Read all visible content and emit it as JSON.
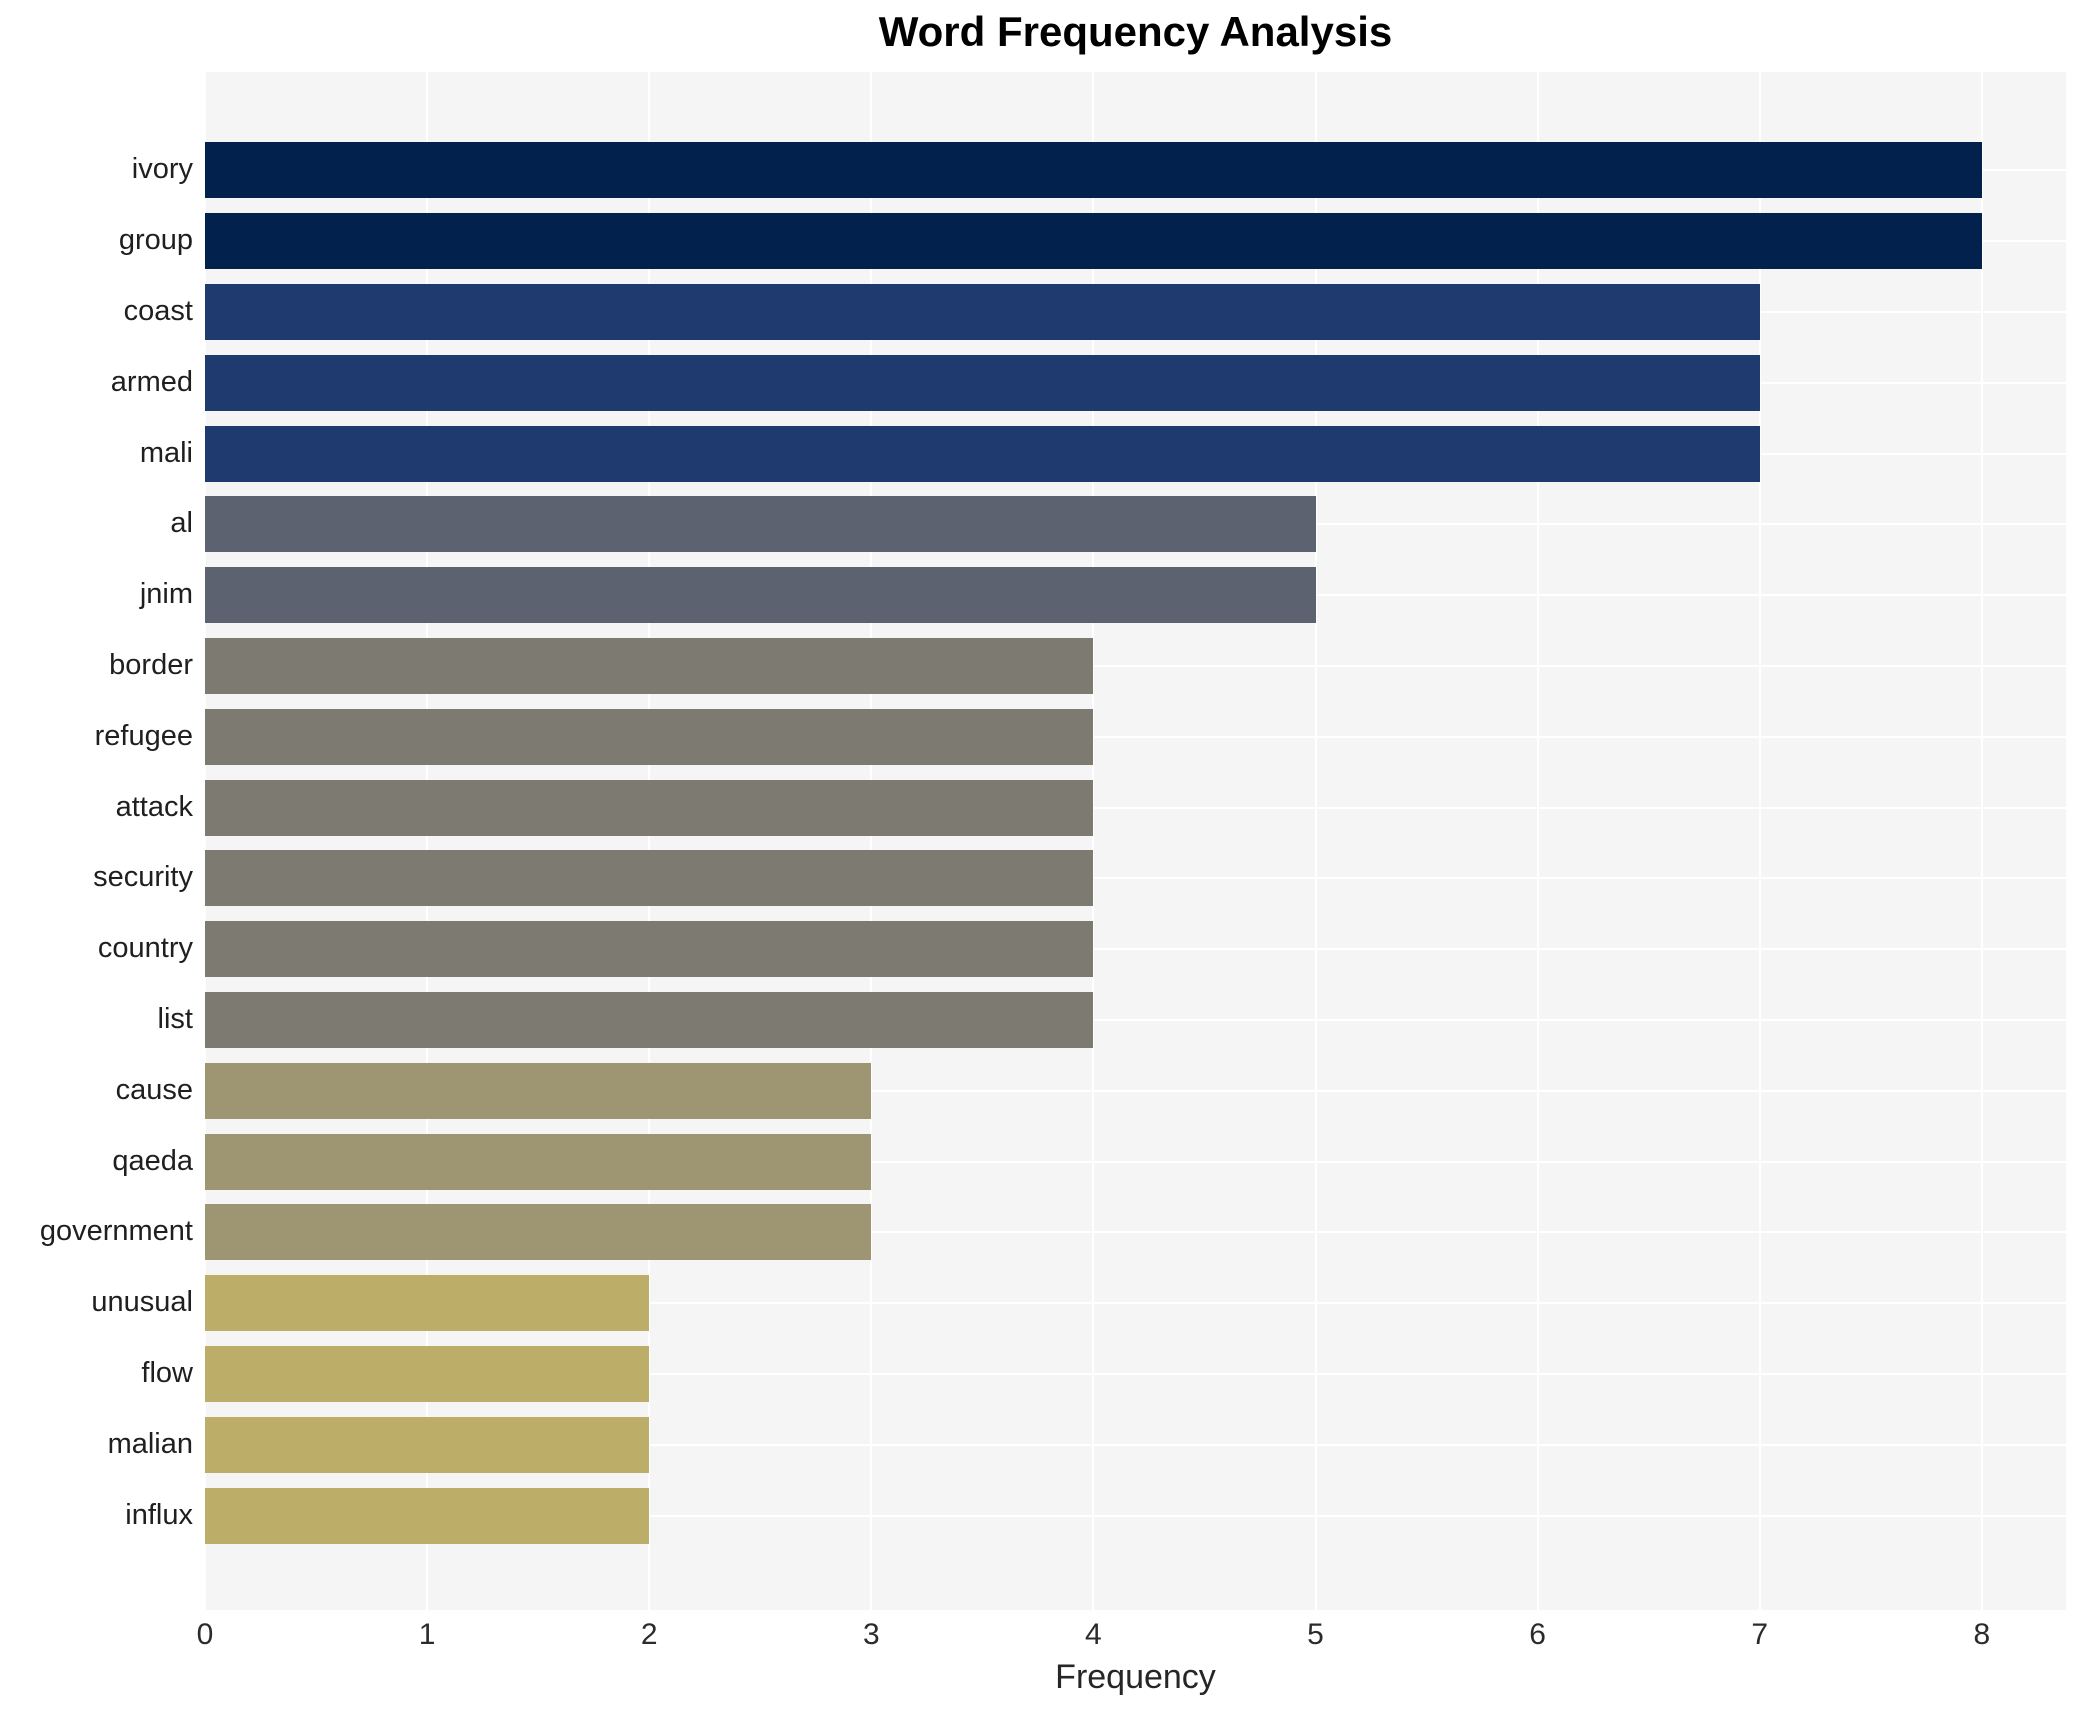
{
  "chart_data": {
    "type": "bar",
    "orientation": "horizontal",
    "title": "Word Frequency Analysis",
    "xlabel": "Frequency",
    "ylabel": "",
    "categories": [
      "ivory",
      "group",
      "coast",
      "armed",
      "mali",
      "al",
      "jnim",
      "border",
      "refugee",
      "attack",
      "security",
      "country",
      "list",
      "cause",
      "qaeda",
      "government",
      "unusual",
      "flow",
      "malian",
      "influx"
    ],
    "values": [
      8,
      8,
      7,
      7,
      7,
      5,
      5,
      4,
      4,
      4,
      4,
      4,
      4,
      3,
      3,
      3,
      2,
      2,
      2,
      2
    ],
    "xticks": [
      0,
      1,
      2,
      3,
      4,
      5,
      6,
      7,
      8
    ],
    "xlim": [
      0,
      8.38
    ],
    "grid": true,
    "legend": false,
    "colors_by_value": {
      "8": "#02214d",
      "7": "#1e3a6e",
      "5": "#5d6271",
      "4": "#7d7a71",
      "3": "#9e9672",
      "2": "#bcad69"
    },
    "plot_background": "#f5f5f6",
    "grid_color": "#ffffff"
  }
}
